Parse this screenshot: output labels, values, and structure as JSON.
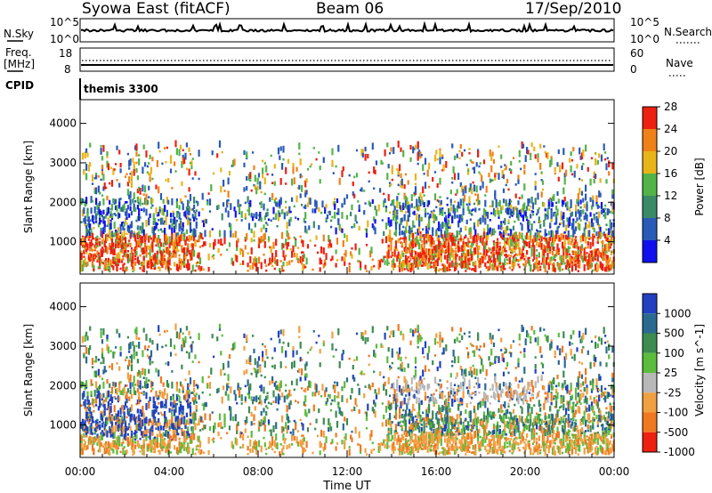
{
  "header": {
    "title": "Syowa East (fitACF)",
    "beam": "Beam 06",
    "date": "17/Sep/2010"
  },
  "top_panels": {
    "nsky": {
      "label": "N.Sky",
      "right_label": "N.Search",
      "ticks": [
        "10^5",
        "10^0"
      ],
      "right_ticks": [
        "10^5",
        "10^0"
      ]
    },
    "freq": {
      "label_line1": "Freq.",
      "label_line2": "[MHz]",
      "ticks": [
        "18",
        "8"
      ],
      "right_label": "Nave",
      "right_ticks": [
        "60",
        "0"
      ]
    },
    "cpid": {
      "label": "CPID",
      "program": "themis 3300"
    }
  },
  "chart_data": [
    {
      "type": "heatmap",
      "title": "",
      "parameter": "Power",
      "ylabel": "Slant Range [km]",
      "xlabel": "",
      "y_ticks": [
        "1000",
        "2000",
        "3000",
        "4000"
      ],
      "ylim": [
        180,
        4600
      ],
      "xlim_hours": [
        0,
        24
      ],
      "colorbar": {
        "label": "Power [dB]",
        "ticks": [
          "4",
          "8",
          "12",
          "16",
          "20",
          "24",
          "28"
        ],
        "colors": [
          "#1010ee",
          "#2a5ab8",
          "#3a8a68",
          "#52b448",
          "#e8b418",
          "#f08018",
          "#ee2010"
        ]
      }
    },
    {
      "type": "heatmap",
      "title": "",
      "parameter": "Velocity",
      "ylabel": "Slant Range [km]",
      "xlabel": "Time UT",
      "x_ticks": [
        "00:00",
        "04:00",
        "08:00",
        "12:00",
        "16:00",
        "20:00",
        "00:00"
      ],
      "y_ticks": [
        "1000",
        "2000",
        "3000",
        "4000"
      ],
      "ylim": [
        180,
        4600
      ],
      "xlim_hours": [
        0,
        24
      ],
      "colorbar": {
        "label": "Velocity [m s^-1]",
        "ticks": [
          "1000",
          "500",
          "100",
          "25",
          "-25",
          "-100",
          "-500",
          "-1000"
        ],
        "colors": [
          "#2040c0",
          "#2a6a90",
          "#3c8c50",
          "#5cbc3c",
          "#b8b8b8",
          "#f0a040",
          "#f07820",
          "#ee2010"
        ]
      }
    }
  ]
}
